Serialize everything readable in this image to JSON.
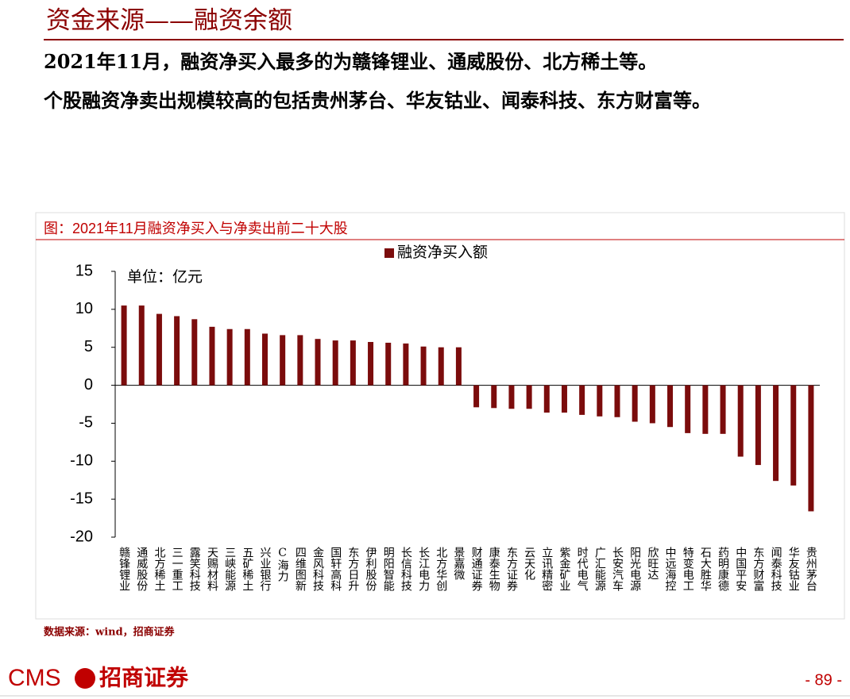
{
  "header": {
    "title": "资金来源——融资余额",
    "paragraphs": [
      "2021年11月，融资净买入最多的为赣锋锂业、通威股份、北方稀土等。",
      "个股融资净卖出规模较高的包括贵州茅台、华友钴业、闻泰科技、东方财富等。"
    ]
  },
  "chart_data": {
    "type": "bar",
    "title": "图：2021年11月融资净买入与净卖出前二十大股",
    "annotation": "单位：亿元",
    "categories": [
      "赣锋锂业",
      "通威股份",
      "北方稀土",
      "三一重工",
      "露笑科技",
      "天赐材料",
      "三峡能源",
      "五矿稀土",
      "兴业银行",
      "C海力",
      "四维图新",
      "金风科技",
      "国轩高科",
      "东方日升",
      "伊利股份",
      "明阳智能",
      "长信科技",
      "长江电力",
      "北方华创",
      "景嘉微",
      "财通证券",
      "康泰生物",
      "东方证券",
      "云天化",
      "立讯精密",
      "紫金矿业",
      "时代电气",
      "广汇能源",
      "长安汽车",
      "阳光电源",
      "欣旺达",
      "中远海控",
      "特变电工",
      "石大胜华",
      "药明康德",
      "中国平安",
      "东方财富",
      "闻泰科技",
      "华友钴业",
      "贵州茅台"
    ],
    "series": [
      {
        "name": "融资净买入额",
        "color": "#7b0c0c",
        "values": [
          10.5,
          10.5,
          9.4,
          9.1,
          8.7,
          7.7,
          7.4,
          7.4,
          6.8,
          6.6,
          6.6,
          6.1,
          5.9,
          5.9,
          5.7,
          5.6,
          5.5,
          5.1,
          5.0,
          5.0,
          -2.9,
          -3.0,
          -3.1,
          -3.1,
          -3.6,
          -3.6,
          -3.9,
          -4.1,
          -4.2,
          -4.8,
          -5.0,
          -5.5,
          -6.3,
          -6.4,
          -6.4,
          -9.4,
          -10.5,
          -12.6,
          -13.2,
          -16.6
        ]
      }
    ],
    "ylim": [
      -20,
      15
    ],
    "yticks": [
      15,
      10,
      5,
      0,
      -5,
      -10,
      -15,
      -20
    ],
    "legend": "top"
  },
  "source": "数据来源：wind，招商证券",
  "footer": {
    "logo_text": "CMS",
    "logo_name": "招商证券",
    "page": "- 89 -"
  }
}
